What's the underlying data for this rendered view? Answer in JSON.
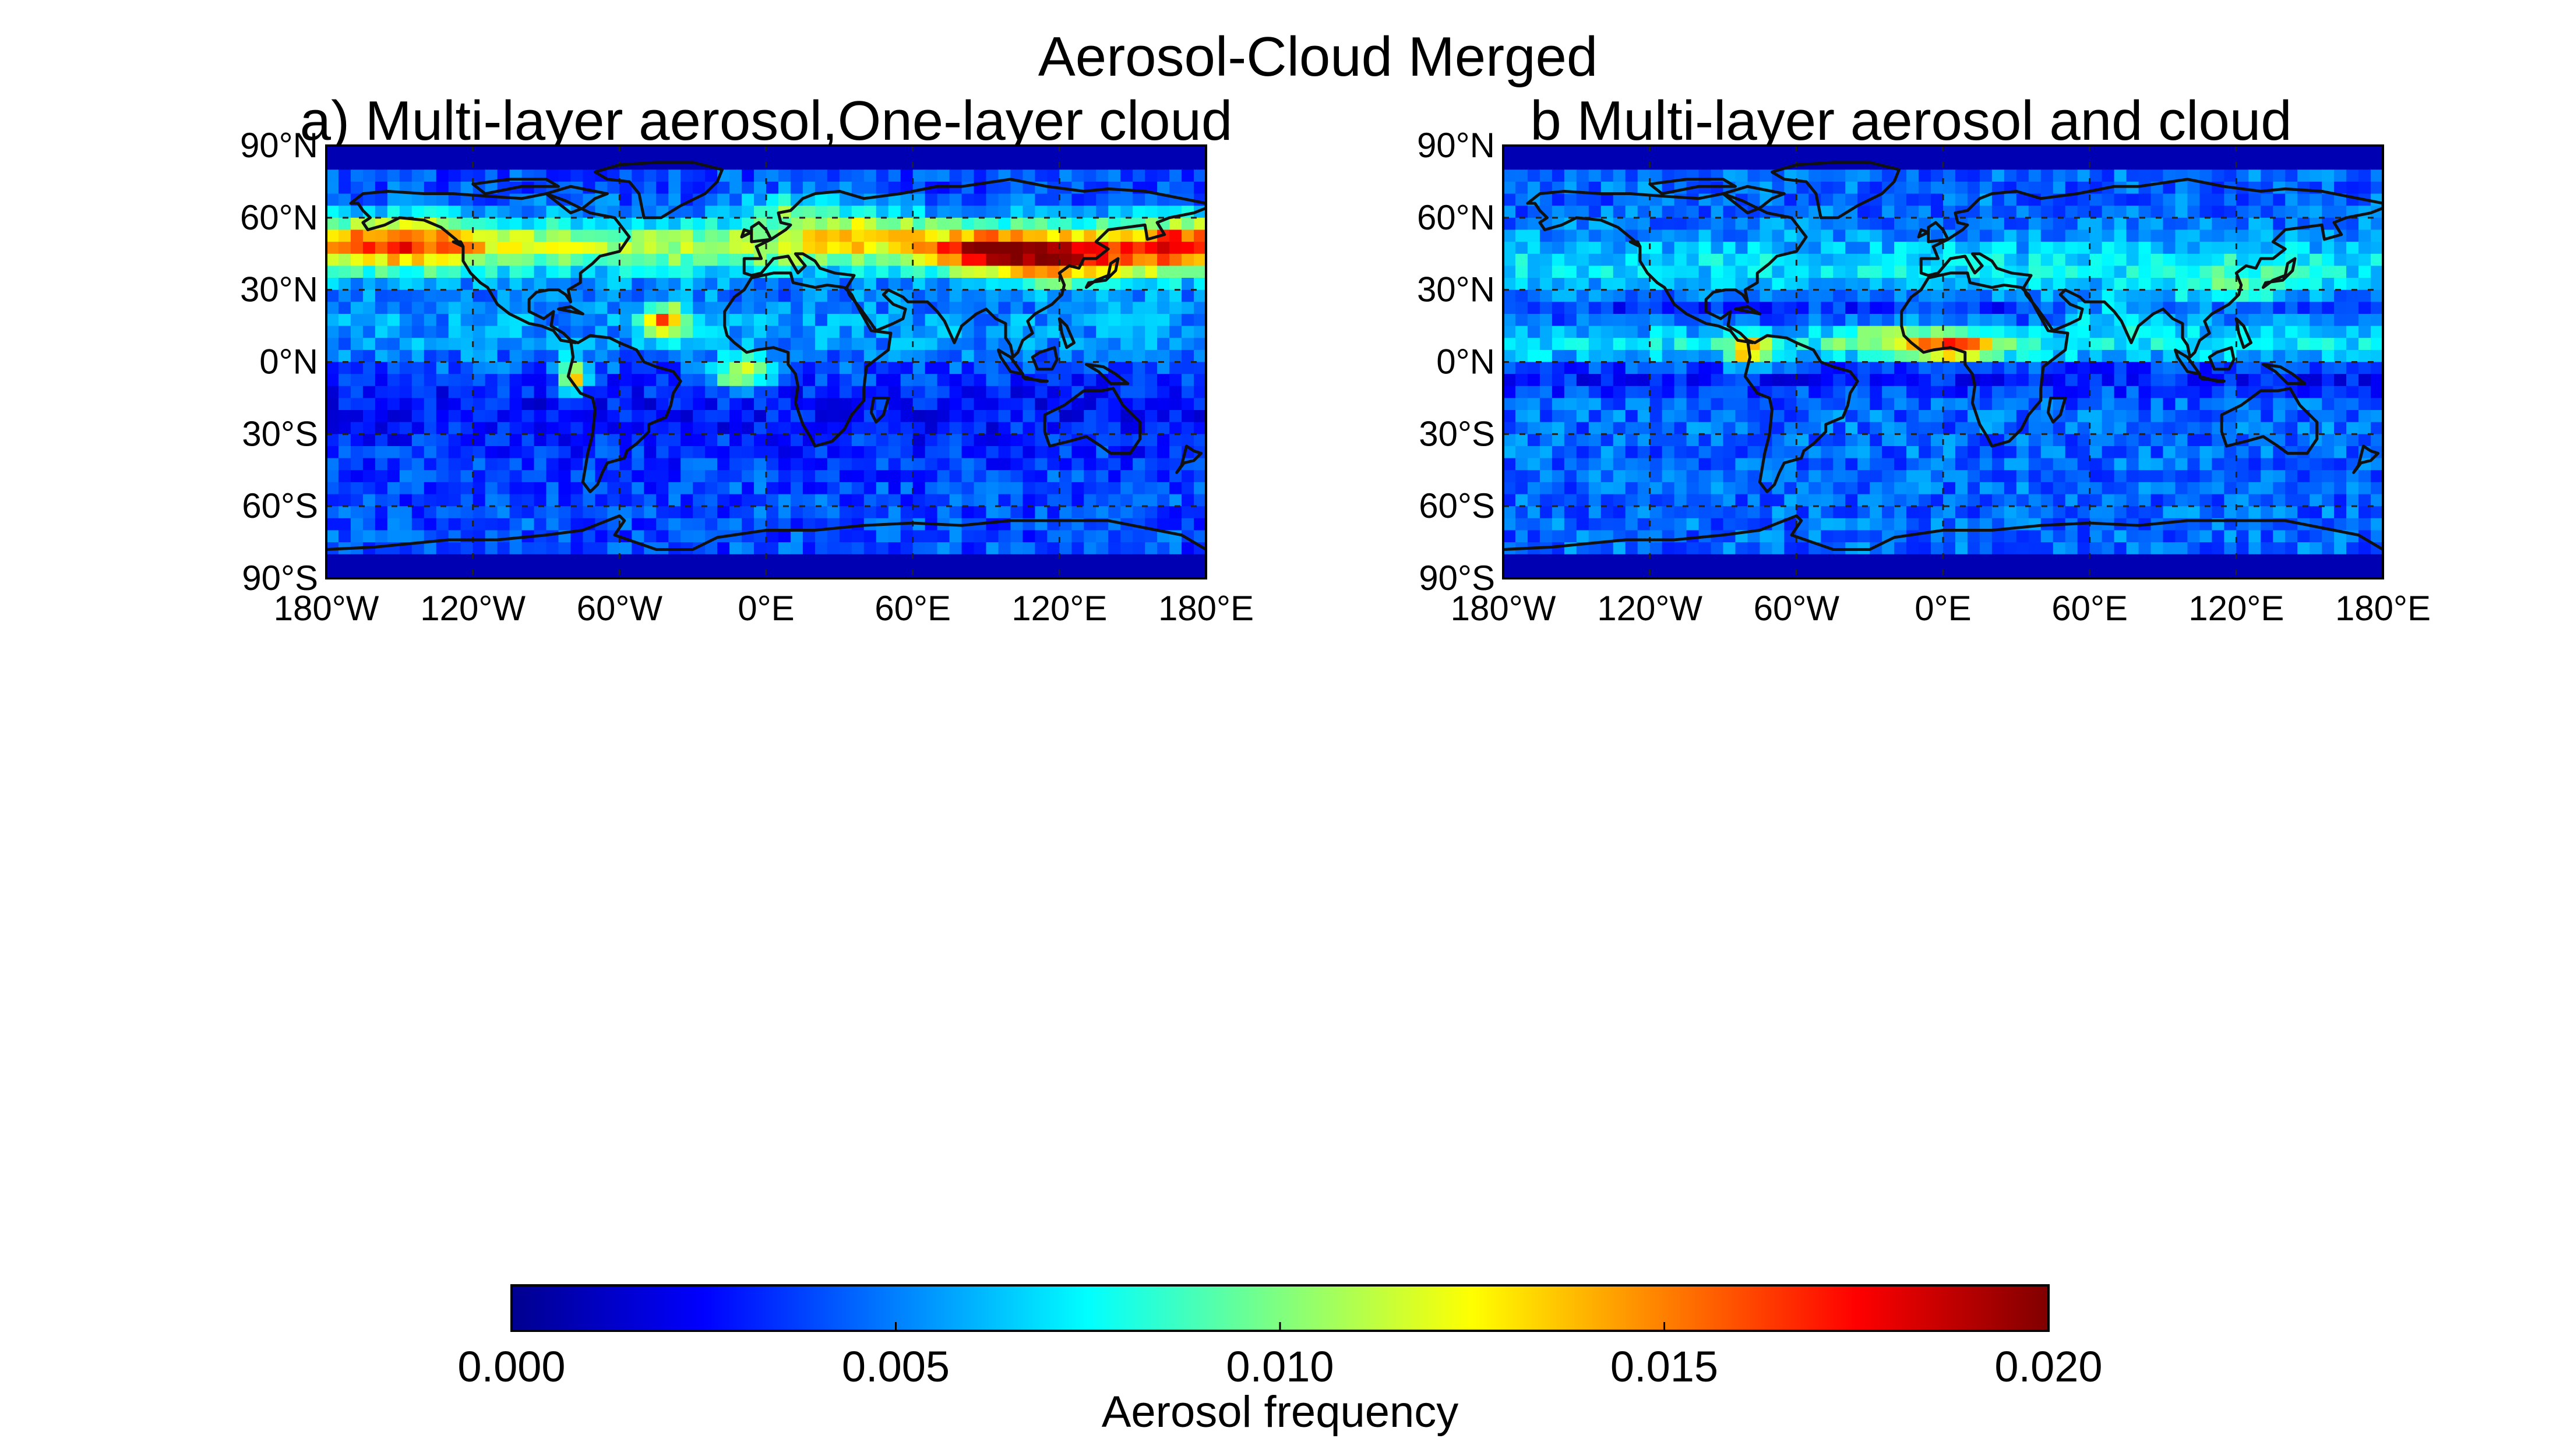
{
  "figure": {
    "title": "Aerosol-Cloud Merged"
  },
  "panels": [
    {
      "title": "a) Multi-layer aerosol,One-layer cloud",
      "lat_ticks": [
        "90°N",
        "60°N",
        "30°N",
        "0°N",
        "30°S",
        "60°S",
        "90°S"
      ],
      "lon_ticks": [
        "180°W",
        "120°W",
        "60°W",
        "0°E",
        "60°E",
        "120°E",
        "180°E"
      ]
    },
    {
      "title": "b Multi-layer aerosol and cloud",
      "lat_ticks": [
        "90°N",
        "60°N",
        "30°N",
        "0°N",
        "30°S",
        "60°S",
        "90°S"
      ],
      "lon_ticks": [
        "180°W",
        "120°W",
        "60°W",
        "0°E",
        "60°E",
        "120°E",
        "180°E"
      ]
    }
  ],
  "colorbar": {
    "ticks": [
      "0.000",
      "0.005",
      "0.010",
      "0.015",
      "0.020"
    ],
    "label": "Aerosol frequency",
    "min": 0.0,
    "max": 0.02,
    "colormap": "jet"
  },
  "chart_data": [
    {
      "type": "heatmap",
      "title": "a) Multi-layer aerosol,One-layer cloud",
      "xlim": [
        -180,
        180
      ],
      "ylim": [
        -90,
        90
      ],
      "value_range": [
        0.0,
        0.02
      ],
      "hotspots": [
        {
          "lon": 125,
          "lat": 42,
          "value": 0.017
        },
        {
          "lon": 85,
          "lat": 46,
          "value": 0.016
        },
        {
          "lon": -40,
          "lat": 17,
          "value": 0.016
        },
        {
          "lon": -10,
          "lat": -5,
          "value": 0.015
        },
        {
          "lon": -78,
          "lat": -5,
          "value": 0.014
        },
        {
          "lon": -150,
          "lat": 50,
          "value": 0.013
        },
        {
          "lon": 160,
          "lat": 50,
          "value": 0.014
        },
        {
          "lon": 40,
          "lat": 55,
          "value": 0.012
        },
        {
          "lon": 0,
          "lat": 63,
          "value": 0.011
        }
      ]
    },
    {
      "type": "heatmap",
      "title": "b Multi-layer aerosol and cloud",
      "xlim": [
        -180,
        180
      ],
      "ylim": [
        -90,
        90
      ],
      "value_range": [
        0.0,
        0.02
      ],
      "hotspots": [
        {
          "lon": 0,
          "lat": 7,
          "value": 0.016
        },
        {
          "lon": 15,
          "lat": 2,
          "value": 0.015
        },
        {
          "lon": -80,
          "lat": 5,
          "value": 0.013
        },
        {
          "lon": -20,
          "lat": 10,
          "value": 0.011
        },
        {
          "lon": 70,
          "lat": 20,
          "value": 0.009
        },
        {
          "lon": 120,
          "lat": 30,
          "value": 0.009
        }
      ]
    }
  ]
}
